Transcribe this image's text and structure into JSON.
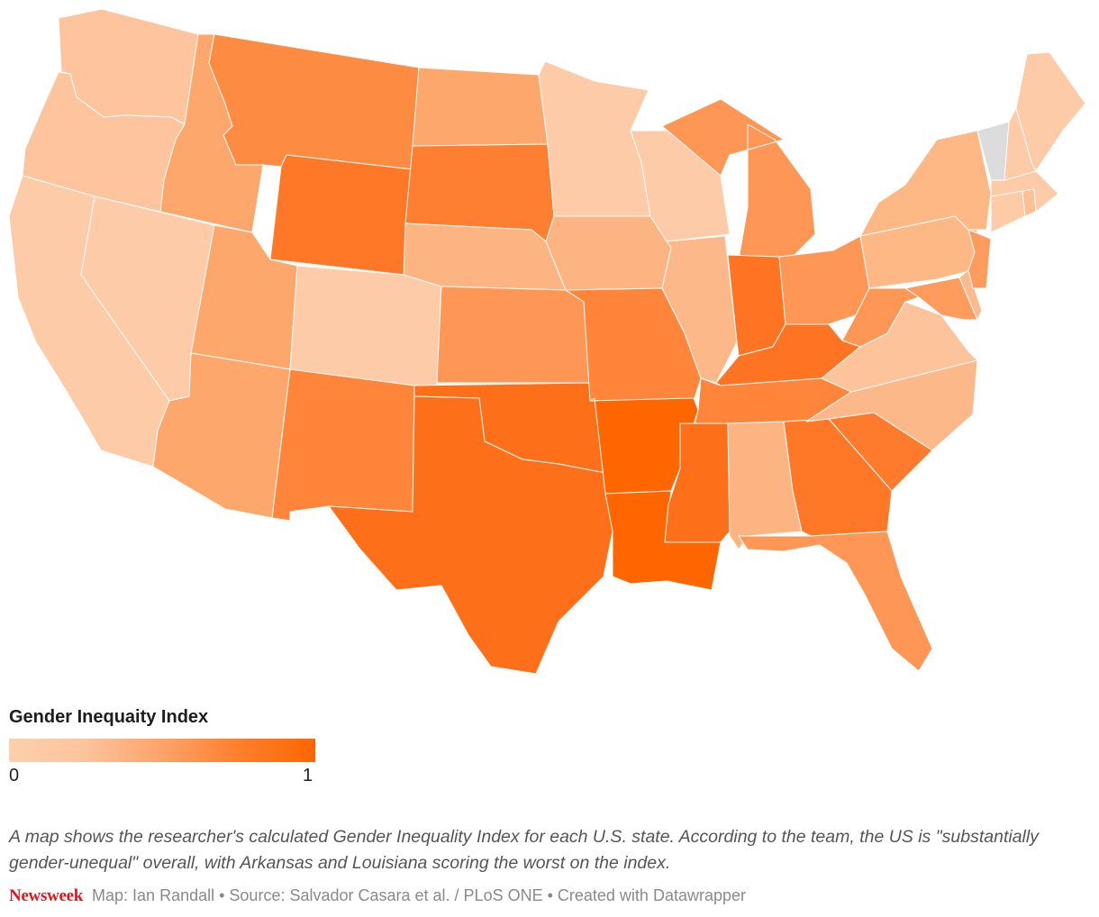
{
  "legend": {
    "title": "Gender Inequaity Index",
    "min_label": "0",
    "max_label": "1",
    "gradient": [
      "#fdd0ae",
      "#fdc39b",
      "#fda36a",
      "#fe7f2d",
      "#ff6600"
    ]
  },
  "caption": "A map shows the researcher's calculated Gender Inequality Index for each U.S. state. According to the team, the US is \"substantially gender-unequal\" overall, with Arkansas and Louisiana scoring the worst on the index.",
  "footer": {
    "brand": "Newsweek",
    "credits": "Map: Ian Randall • Source: Salvador Casara et al. / PLoS ONE • Created with Datawrapper"
  },
  "colors": {
    "no_data": "#dcdcdc",
    "border": "#ffffff",
    "brand_red": "#e4161d"
  },
  "chart_data": {
    "type": "choropleth",
    "title": "Gender Inequaity Index",
    "scale": {
      "min": 0,
      "max": 1,
      "colors": [
        "#fdd0ae",
        "#ff6600"
      ]
    },
    "states": [
      {
        "id": "WA",
        "name": "Washington",
        "value": 0.15,
        "color": "#fdc49e"
      },
      {
        "id": "OR",
        "name": "Oregon",
        "value": 0.15,
        "color": "#fdc49e"
      },
      {
        "id": "CA",
        "name": "California",
        "value": 0.1,
        "color": "#fdcba8"
      },
      {
        "id": "NV",
        "name": "Nevada",
        "value": 0.1,
        "color": "#fdcba8"
      },
      {
        "id": "ID",
        "name": "Idaho",
        "value": 0.45,
        "color": "#fda76c"
      },
      {
        "id": "MT",
        "name": "Montana",
        "value": 0.7,
        "color": "#fe8b42"
      },
      {
        "id": "WY",
        "name": "Wyoming",
        "value": 0.85,
        "color": "#fe7828"
      },
      {
        "id": "UT",
        "name": "Utah",
        "value": 0.45,
        "color": "#fda76c"
      },
      {
        "id": "AZ",
        "name": "Arizona",
        "value": 0.45,
        "color": "#fda76c"
      },
      {
        "id": "CO",
        "name": "Colorado",
        "value": 0.1,
        "color": "#fdcba8"
      },
      {
        "id": "NM",
        "name": "New Mexico",
        "value": 0.75,
        "color": "#fe853a"
      },
      {
        "id": "ND",
        "name": "North Dakota",
        "value": 0.45,
        "color": "#fda76c"
      },
      {
        "id": "SD",
        "name": "South Dakota",
        "value": 0.8,
        "color": "#fe7e32"
      },
      {
        "id": "NE",
        "name": "Nebraska",
        "value": 0.35,
        "color": "#fdb483"
      },
      {
        "id": "KS",
        "name": "Kansas",
        "value": 0.6,
        "color": "#fe9655"
      },
      {
        "id": "OK",
        "name": "Oklahoma",
        "value": 0.9,
        "color": "#fe6f19"
      },
      {
        "id": "TX",
        "name": "Texas",
        "value": 0.9,
        "color": "#fe6f19"
      },
      {
        "id": "MN",
        "name": "Minnesota",
        "value": 0.1,
        "color": "#fdcba8"
      },
      {
        "id": "IA",
        "name": "Iowa",
        "value": 0.35,
        "color": "#fdb483"
      },
      {
        "id": "MO",
        "name": "Missouri",
        "value": 0.75,
        "color": "#fe853a"
      },
      {
        "id": "AR",
        "name": "Arkansas",
        "value": 1.0,
        "color": "#ff6600"
      },
      {
        "id": "LA",
        "name": "Louisiana",
        "value": 1.0,
        "color": "#ff6600"
      },
      {
        "id": "WI",
        "name": "Wisconsin",
        "value": 0.1,
        "color": "#fdcba8"
      },
      {
        "id": "IL",
        "name": "Illinois",
        "value": 0.3,
        "color": "#fdb88a"
      },
      {
        "id": "MI",
        "name": "Michigan",
        "value": 0.6,
        "color": "#fe9655"
      },
      {
        "id": "IN",
        "name": "Indiana",
        "value": 0.85,
        "color": "#fe7422"
      },
      {
        "id": "OH",
        "name": "Ohio",
        "value": 0.6,
        "color": "#fe9655"
      },
      {
        "id": "KY",
        "name": "Kentucky",
        "value": 0.85,
        "color": "#fe7422"
      },
      {
        "id": "TN",
        "name": "Tennessee",
        "value": 0.75,
        "color": "#fe853a"
      },
      {
        "id": "MS",
        "name": "Mississippi",
        "value": 0.9,
        "color": "#fe6f19"
      },
      {
        "id": "AL",
        "name": "Alabama",
        "value": 0.35,
        "color": "#fdb483"
      },
      {
        "id": "GA",
        "name": "Georgia",
        "value": 0.85,
        "color": "#fe7828"
      },
      {
        "id": "FL",
        "name": "Florida",
        "value": 0.6,
        "color": "#fe9655"
      },
      {
        "id": "SC",
        "name": "South Carolina",
        "value": 0.8,
        "color": "#fe7b2e"
      },
      {
        "id": "NC",
        "name": "North Carolina",
        "value": 0.3,
        "color": "#fdb88a"
      },
      {
        "id": "VA",
        "name": "Virginia",
        "value": 0.2,
        "color": "#fdc49b"
      },
      {
        "id": "WV",
        "name": "West Virginia",
        "value": 0.6,
        "color": "#fe9655"
      },
      {
        "id": "PA",
        "name": "Pennsylvania",
        "value": 0.35,
        "color": "#fdb886"
      },
      {
        "id": "MD",
        "name": "Maryland",
        "value": 0.55,
        "color": "#fe9c5e"
      },
      {
        "id": "DE",
        "name": "Delaware",
        "value": 0.3,
        "color": "#fdbb8d"
      },
      {
        "id": "NJ",
        "name": "New Jersey",
        "value": 0.55,
        "color": "#fe9c5e"
      },
      {
        "id": "NY",
        "name": "New York",
        "value": 0.35,
        "color": "#fdb886"
      },
      {
        "id": "CT",
        "name": "Connecticut",
        "value": 0.1,
        "color": "#fdcba8"
      },
      {
        "id": "RI",
        "name": "Rhode Island",
        "value": 0.25,
        "color": "#fdbf94"
      },
      {
        "id": "MA",
        "name": "Massachusetts",
        "value": 0.1,
        "color": "#fdcba8"
      },
      {
        "id": "VT",
        "name": "Vermont",
        "value": null,
        "color": "#dcdcdc"
      },
      {
        "id": "NH",
        "name": "New Hampshire",
        "value": 0.1,
        "color": "#fdcba8"
      },
      {
        "id": "ME",
        "name": "Maine",
        "value": 0.1,
        "color": "#fdcba8"
      }
    ]
  }
}
